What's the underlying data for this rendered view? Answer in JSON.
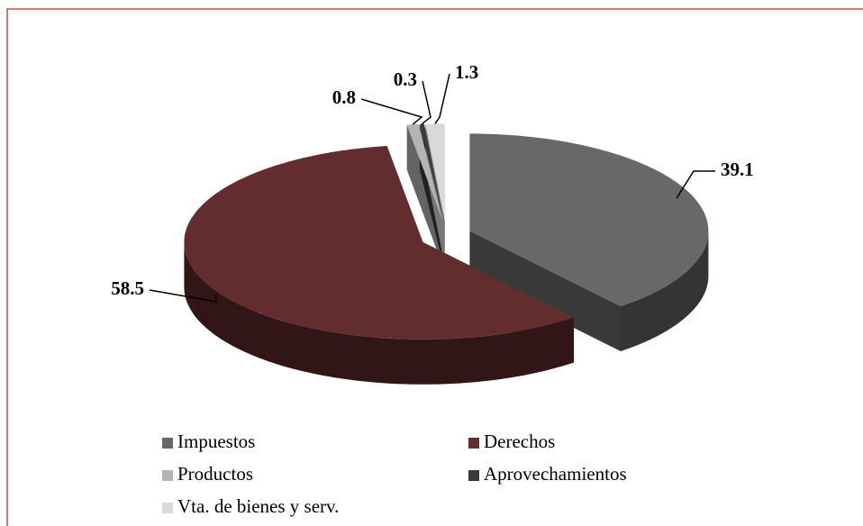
{
  "chart_data": {
    "type": "pie3d",
    "categories": [
      "Impuestos",
      "Derechos",
      "Productos",
      "Aprovechamientos",
      "Vta. de bienes y serv."
    ],
    "values": [
      39.1,
      58.5,
      0.8,
      0.3,
      1.3
    ],
    "colors": [
      "#686868",
      "#632c2e",
      "#b4b4b4",
      "#3a3a3a",
      "#d9d9d9"
    ]
  }
}
